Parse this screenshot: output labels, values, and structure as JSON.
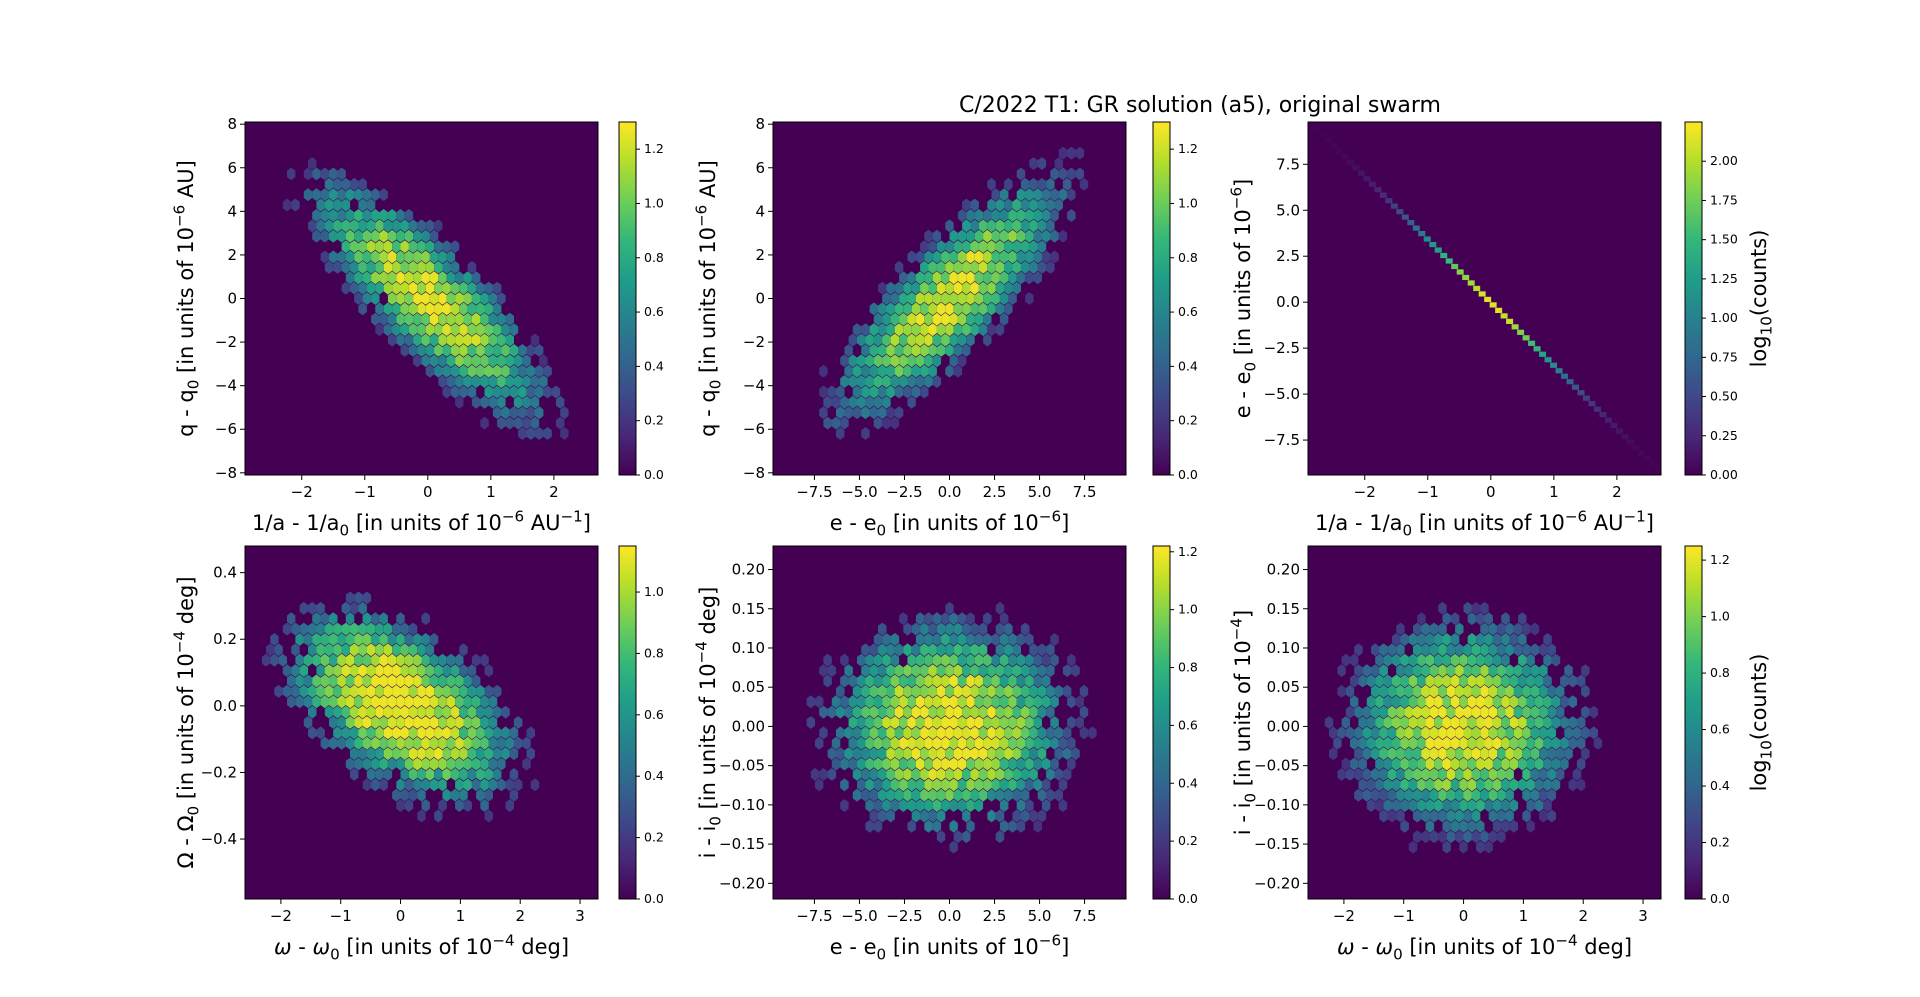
{
  "figure": {
    "title": "C/2022 T1: GR solution (a5), original swarm"
  },
  "colors": {
    "viridis": [
      "#440154",
      "#482878",
      "#3e4989",
      "#31688e",
      "#26828e",
      "#1f9e89",
      "#35b779",
      "#6ece58",
      "#b5de2b",
      "#fde725"
    ],
    "background": "#440154"
  },
  "chart_data": [
    {
      "type": "heatmap",
      "panel": "top-left",
      "xlabel": "1/a - 1/a<sub>0</sub> [in units of 10<sup>−6</sup> AU<sup>−1</sup>]",
      "ylabel": "q - q<sub>0</sub> [in units of 10<sup>−6</sup> AU]",
      "xlim": [
        -2.9,
        2.7
      ],
      "ylim": [
        -8.1,
        8.1
      ],
      "xticks": [
        -2,
        -1,
        0,
        1,
        2
      ],
      "xtick_labels": [
        "−2",
        "−1",
        "0",
        "1",
        "2"
      ],
      "yticks": [
        -8,
        -6,
        -4,
        -2,
        0,
        2,
        4,
        6,
        8
      ],
      "ytick_labels": [
        "−8",
        "−6",
        "−4",
        "−2",
        "0",
        "2",
        "4",
        "6",
        "8"
      ],
      "distribution": {
        "sx": 0.85,
        "sy": 2.5,
        "rho": -0.82,
        "cx": 0,
        "cy": 0
      },
      "colorbar": {
        "label": "",
        "min": 0,
        "max": 1.3,
        "ticks": [
          0,
          0.2,
          0.4,
          0.6,
          0.8,
          1.0,
          1.2
        ],
        "tick_labels": [
          "0.0",
          "0.2",
          "0.4",
          "0.6",
          "0.8",
          "1.0",
          "1.2"
        ]
      }
    },
    {
      "type": "heatmap",
      "panel": "top-middle",
      "xlabel": "e - e<sub>0</sub> [in units of 10<sup>−6</sup>]",
      "ylabel": "q - q<sub>0</sub> [in units of 10<sup>−6</sup> AU]",
      "xlim": [
        -9.8,
        9.8
      ],
      "ylim": [
        -8.1,
        8.1
      ],
      "xticks": [
        -7.5,
        -5.0,
        -2.5,
        0.0,
        2.5,
        5.0,
        7.5
      ],
      "xtick_labels": [
        "−7.5",
        "−5.0",
        "−2.5",
        "0.0",
        "2.5",
        "5.0",
        "7.5"
      ],
      "yticks": [
        -8,
        -6,
        -4,
        -2,
        0,
        2,
        4,
        6,
        8
      ],
      "ytick_labels": [
        "−8",
        "−6",
        "−4",
        "−2",
        "0",
        "2",
        "4",
        "6",
        "8"
      ],
      "distribution": {
        "sx": 2.9,
        "sy": 2.5,
        "rho": 0.82,
        "cx": 0,
        "cy": 0
      },
      "colorbar": {
        "label": "",
        "min": 0,
        "max": 1.3,
        "ticks": [
          0,
          0.2,
          0.4,
          0.6,
          0.8,
          1.0,
          1.2
        ],
        "tick_labels": [
          "0.0",
          "0.2",
          "0.4",
          "0.6",
          "0.8",
          "1.0",
          "1.2"
        ]
      }
    },
    {
      "type": "heatmap",
      "panel": "top-right",
      "xlabel": "1/a - 1/a<sub>0</sub> [in units of 10<sup>−6</sup> AU<sup>−1</sup>]",
      "ylabel": "e - e<sub>0</sub> [in units of 10<sup>−6</sup>]",
      "xlim": [
        -2.9,
        2.7
      ],
      "ylim": [
        -9.4,
        9.8
      ],
      "xticks": [
        -2,
        -1,
        0,
        1,
        2
      ],
      "xtick_labels": [
        "−2",
        "−1",
        "0",
        "1",
        "2"
      ],
      "yticks": [
        -7.5,
        -5.0,
        -2.5,
        0.0,
        2.5,
        5.0,
        7.5
      ],
      "ytick_labels": [
        "−7.5",
        "−5.0",
        "−2.5",
        "0.0",
        "2.5",
        "5.0",
        "7.5"
      ],
      "line": {
        "x0": -2.75,
        "y0": 9.4,
        "x1": 2.65,
        "y1": -9.1
      },
      "colorbar": {
        "label": "log<sub>10</sub>(counts)",
        "min": 0,
        "max": 2.25,
        "ticks": [
          0,
          0.25,
          0.5,
          0.75,
          1.0,
          1.25,
          1.5,
          1.75,
          2.0
        ],
        "tick_labels": [
          "0.00",
          "0.25",
          "0.50",
          "0.75",
          "1.00",
          "1.25",
          "1.50",
          "1.75",
          "2.00"
        ]
      }
    },
    {
      "type": "heatmap",
      "panel": "bottom-left",
      "xlabel": "<tspan font-style=\"italic\">ω</tspan> - <tspan font-style=\"italic\">ω</tspan><sub>0</sub> [in units of 10<sup>−4</sup> deg]",
      "ylabel": "Ω - Ω<sub>0</sub> [in units of 10<sup>−4</sup> deg]",
      "xlim": [
        -2.6,
        3.3
      ],
      "ylim": [
        -0.58,
        0.48
      ],
      "xticks": [
        -2,
        -1,
        0,
        1,
        2,
        3
      ],
      "xtick_labels": [
        "−2",
        "−1",
        "0",
        "1",
        "2",
        "3"
      ],
      "yticks": [
        -0.4,
        -0.2,
        0.0,
        0.2,
        0.4
      ],
      "ytick_labels": [
        "−0.4",
        "−0.2",
        "0.0",
        "0.2",
        "0.4"
      ],
      "distribution": {
        "sx": 0.85,
        "sy": 0.13,
        "rho": -0.5,
        "cx": 0,
        "cy": 0
      },
      "colorbar": {
        "label": "",
        "min": 0,
        "max": 1.15,
        "ticks": [
          0,
          0.2,
          0.4,
          0.6,
          0.8,
          1.0
        ],
        "tick_labels": [
          "0.0",
          "0.2",
          "0.4",
          "0.6",
          "0.8",
          "1.0"
        ]
      }
    },
    {
      "type": "heatmap",
      "panel": "bottom-middle",
      "xlabel": "e - e<sub>0</sub> [in units of 10<sup>−6</sup>]",
      "ylabel": "i - i<sub>0</sub> [in units of 10<sup>−4</sup> deg]",
      "xlim": [
        -9.8,
        9.8
      ],
      "ylim": [
        -0.22,
        0.23
      ],
      "xticks": [
        -7.5,
        -5.0,
        -2.5,
        0.0,
        2.5,
        5.0,
        7.5
      ],
      "xtick_labels": [
        "−7.5",
        "−5.0",
        "−2.5",
        "0.0",
        "2.5",
        "5.0",
        "7.5"
      ],
      "yticks": [
        -0.2,
        -0.15,
        -0.1,
        -0.05,
        0.0,
        0.05,
        0.1,
        0.15,
        0.2
      ],
      "ytick_labels": [
        "−0.20",
        "−0.15",
        "−0.10",
        "−0.05",
        "0.00",
        "0.05",
        "0.10",
        "0.15",
        "0.20"
      ],
      "distribution": {
        "sx": 3.0,
        "sy": 0.06,
        "rho": 0.0,
        "cx": 0,
        "cy": 0
      },
      "colorbar": {
        "label": "",
        "min": 0,
        "max": 1.22,
        "ticks": [
          0,
          0.2,
          0.4,
          0.6,
          0.8,
          1.0,
          1.2
        ],
        "tick_labels": [
          "0.0",
          "0.2",
          "0.4",
          "0.6",
          "0.8",
          "1.0",
          "1.2"
        ]
      }
    },
    {
      "type": "heatmap",
      "panel": "bottom-right",
      "xlabel": "<tspan font-style=\"italic\">ω</tspan> - <tspan font-style=\"italic\">ω</tspan><sub>0</sub> [in units of 10<sup>−4</sup> deg]",
      "ylabel": "i - i<sub>0</sub> [in units of 10<sup>−4</sup>]",
      "xlim": [
        -2.6,
        3.3
      ],
      "ylim": [
        -0.22,
        0.23
      ],
      "xticks": [
        -2,
        -1,
        0,
        1,
        2,
        3
      ],
      "xtick_labels": [
        "−2",
        "−1",
        "0",
        "1",
        "2",
        "3"
      ],
      "yticks": [
        -0.2,
        -0.15,
        -0.1,
        -0.05,
        0.0,
        0.05,
        0.1,
        0.15,
        0.2
      ],
      "ytick_labels": [
        "−0.20",
        "−0.15",
        "−0.10",
        "−0.05",
        "0.00",
        "0.05",
        "0.10",
        "0.15",
        "0.20"
      ],
      "distribution": {
        "sx": 0.85,
        "sy": 0.06,
        "rho": 0.0,
        "cx": 0,
        "cy": 0
      },
      "colorbar": {
        "label": "log<sub>10</sub>(counts)",
        "min": 0,
        "max": 1.25,
        "ticks": [
          0,
          0.2,
          0.4,
          0.6,
          0.8,
          1.0,
          1.2
        ],
        "tick_labels": [
          "0.0",
          "0.2",
          "0.4",
          "0.6",
          "0.8",
          "1.0",
          "1.2"
        ]
      }
    }
  ]
}
